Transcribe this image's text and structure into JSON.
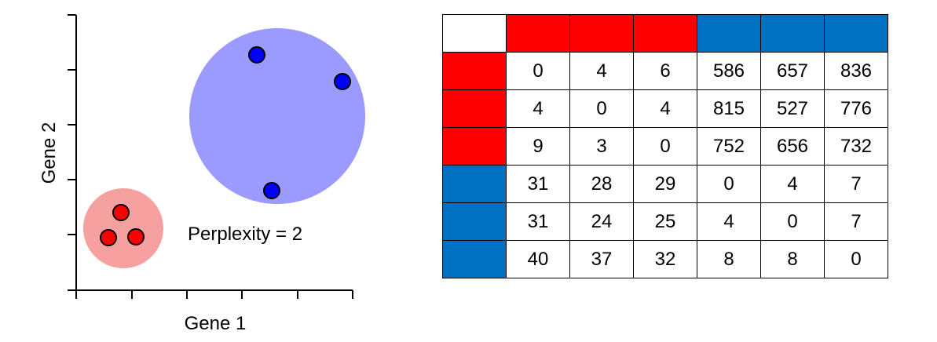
{
  "scatter": {
    "xlabel": "Gene 1",
    "ylabel": "Gene 2",
    "annotation": "Perplexity = 2",
    "colors": {
      "red_cluster_fill": "#f7a0a0",
      "red_point": "#ff0000",
      "blue_cluster_fill": "#9a9aff",
      "blue_point": "#0000ff"
    }
  },
  "matrix": {
    "row_groups": [
      "red",
      "red",
      "red",
      "blue",
      "blue",
      "blue"
    ],
    "col_groups": [
      "red",
      "red",
      "red",
      "blue",
      "blue",
      "blue"
    ],
    "colors": {
      "red": "#ff0000",
      "blue": "#0070c0",
      "corner": "#ffffff"
    },
    "rows": [
      [
        "0",
        "4",
        "6",
        "586",
        "657",
        "836"
      ],
      [
        "4",
        "0",
        "4",
        "815",
        "527",
        "776"
      ],
      [
        "9",
        "3",
        "0",
        "752",
        "656",
        "732"
      ],
      [
        "31",
        "28",
        "29",
        "0",
        "4",
        "7"
      ],
      [
        "31",
        "24",
        "25",
        "4",
        "0",
        "7"
      ],
      [
        "40",
        "37",
        "32",
        "8",
        "8",
        "0"
      ]
    ]
  }
}
